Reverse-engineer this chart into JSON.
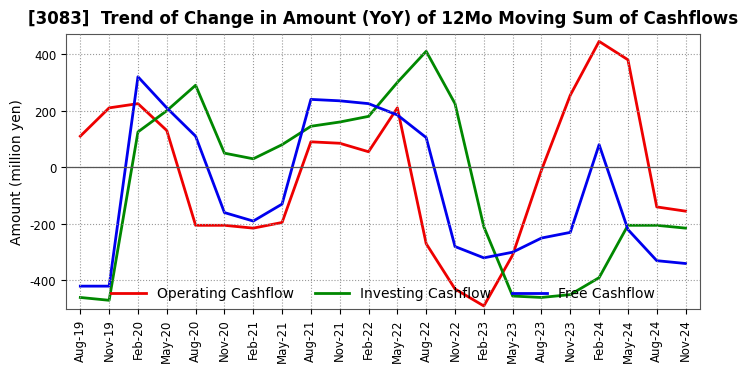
{
  "title": "[3083]  Trend of Change in Amount (YoY) of 12Mo Moving Sum of Cashflows",
  "ylabel": "Amount (million yen)",
  "x_labels": [
    "Aug-19",
    "Nov-19",
    "Feb-20",
    "May-20",
    "Aug-20",
    "Nov-20",
    "Feb-21",
    "May-21",
    "Aug-21",
    "Nov-21",
    "Feb-22",
    "May-22",
    "Aug-22",
    "Nov-22",
    "Feb-23",
    "May-23",
    "Aug-23",
    "Nov-23",
    "Feb-24",
    "May-24",
    "Aug-24",
    "Nov-24"
  ],
  "operating_cashflow": [
    110,
    210,
    225,
    130,
    -205,
    -205,
    -215,
    -195,
    90,
    85,
    55,
    210,
    -270,
    -430,
    -490,
    -310,
    -10,
    255,
    445,
    380,
    -140,
    -155
  ],
  "investing_cashflow": [
    -460,
    -470,
    125,
    200,
    290,
    50,
    30,
    80,
    145,
    160,
    180,
    300,
    410,
    225,
    -210,
    -455,
    -460,
    -450,
    -390,
    -205,
    -205,
    -215
  ],
  "free_cashflow": [
    -420,
    -420,
    320,
    210,
    110,
    -160,
    -190,
    -130,
    240,
    235,
    225,
    185,
    105,
    -280,
    -320,
    -300,
    -250,
    -230,
    80,
    -220,
    -330,
    -340
  ],
  "operating_color": "#ee0000",
  "investing_color": "#008800",
  "free_color": "#0000ee",
  "ylim": [
    -500,
    470
  ],
  "yticks": [
    -400,
    -200,
    0,
    200,
    400
  ],
  "bg_color": "#ffffff",
  "plot_bg_color": "#ffffff",
  "grid_color": "#999999",
  "title_fontsize": 12,
  "axis_label_fontsize": 10,
  "tick_fontsize": 8.5,
  "legend_fontsize": 10,
  "linewidth": 2.0
}
